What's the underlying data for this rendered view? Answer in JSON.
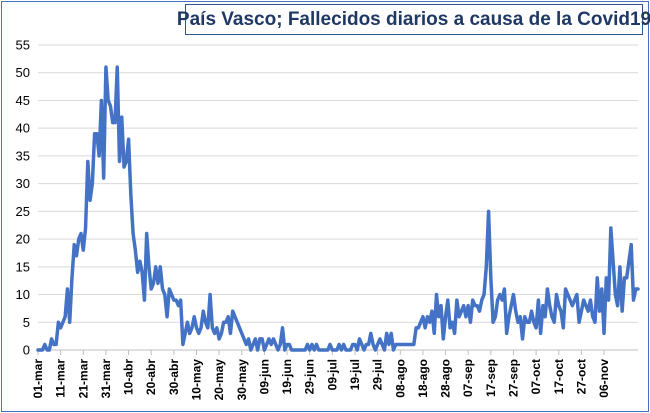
{
  "chart_data": {
    "type": "line",
    "title": "País Vasco; Fallecidos diarios a causa de la Covid19",
    "xlabel": "",
    "ylabel": "",
    "ylim": [
      0,
      55
    ],
    "yticks": [
      0,
      5,
      10,
      15,
      20,
      25,
      30,
      35,
      40,
      45,
      50,
      55
    ],
    "grid": "horizontal",
    "legend": "none",
    "line_color": "#4472c4",
    "start_date": "2020-03-01",
    "tick_labels": [
      "01-mar",
      "11-mar",
      "21-mar",
      "31-mar",
      "10-abr",
      "20-abr",
      "30-abr",
      "10-may",
      "20-may",
      "30-may",
      "09-jun",
      "19-jun",
      "29-jun",
      "09-jul",
      "19-jul",
      "29-jul",
      "08-ago",
      "18-ago",
      "28-ago",
      "07-sep",
      "17-sep",
      "27-sep",
      "07-oct",
      "17-oct",
      "27-oct",
      "06-nov"
    ],
    "series": [
      {
        "values": [
          0,
          0,
          0,
          1,
          0,
          0,
          2,
          1,
          1,
          5,
          4,
          5,
          6,
          11,
          5,
          13,
          19,
          17,
          20,
          21,
          18,
          22,
          34,
          27,
          30,
          39,
          39,
          35,
          45,
          31,
          51,
          45,
          44,
          41,
          41,
          51,
          34,
          42,
          33,
          34,
          38,
          28,
          21,
          18,
          14,
          16,
          14,
          9,
          21,
          15,
          11,
          12,
          15,
          12,
          15,
          11,
          10,
          6,
          11,
          10,
          9,
          9,
          8,
          9,
          1,
          3,
          5,
          3,
          4,
          6,
          4,
          3,
          4,
          7,
          5,
          4,
          10,
          4,
          3,
          4,
          2,
          3,
          5,
          5,
          6,
          3,
          7,
          6,
          5,
          4,
          3,
          2,
          1,
          2,
          0,
          1,
          2,
          0,
          2,
          2,
          0,
          1,
          2,
          1,
          2,
          1,
          0,
          1,
          4,
          0,
          1,
          1,
          0,
          0,
          0,
          0,
          0,
          0,
          0,
          1,
          0,
          1,
          0,
          1,
          0,
          0,
          0,
          0,
          0,
          1,
          0,
          0,
          0,
          1,
          0,
          1,
          0,
          0,
          0,
          1,
          1,
          0,
          2,
          1,
          0,
          1,
          1,
          3,
          1,
          0,
          1,
          2,
          1,
          0,
          3,
          1,
          3,
          0,
          1,
          1,
          1,
          1,
          1,
          1,
          1,
          1,
          1,
          4,
          4,
          5,
          6,
          4,
          6,
          5,
          7,
          3,
          10,
          6,
          8,
          2,
          6,
          9,
          4,
          5,
          3,
          9,
          6,
          7,
          8,
          6,
          8,
          5,
          9,
          8,
          8,
          7,
          9,
          10,
          15,
          25,
          13,
          5,
          6,
          9,
          10,
          9,
          11,
          3,
          6,
          8,
          10,
          7,
          5,
          6,
          2,
          6,
          5,
          5,
          7,
          5,
          4,
          9,
          3,
          8,
          6,
          11,
          8,
          6,
          5,
          10,
          8,
          7,
          4,
          11,
          10,
          9,
          8,
          9,
          10,
          5,
          7,
          9,
          8,
          7,
          9,
          6,
          5,
          13,
          7,
          11,
          3,
          13,
          9,
          22,
          16,
          10,
          8,
          15,
          7,
          13,
          13,
          16,
          19,
          9,
          11,
          11
        ]
      }
    ]
  }
}
